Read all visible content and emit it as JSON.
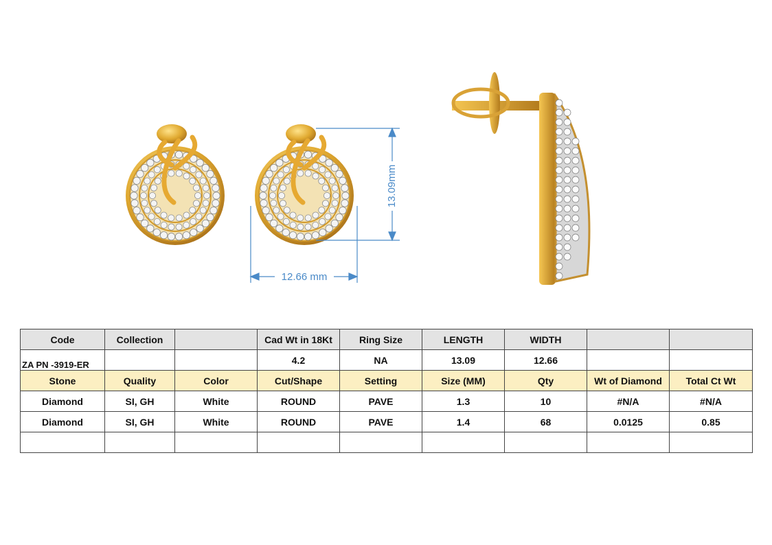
{
  "dimensions": {
    "height": "13.09mm",
    "width": "12.66 mm"
  },
  "table": {
    "rows": [
      [
        "Code",
        "Collection",
        null,
        "Cad Wt in 18Kt",
        "Ring Size",
        "LENGTH",
        "WIDTH",
        null,
        null
      ],
      [
        "ZA PN -3919-ER",
        null,
        null,
        "4.2",
        "NA",
        "13.09",
        "12.66",
        null,
        null
      ],
      [
        "Stone",
        "Quality",
        "Color",
        "Cut/Shape",
        "Setting",
        "Size (MM)",
        "Qty",
        "Wt of Diamond",
        "Total Ct Wt"
      ],
      [
        "Diamond",
        "SI, GH",
        "White",
        "ROUND",
        "PAVE",
        "1.3",
        "10",
        "#N/A",
        "#N/A"
      ],
      [
        "Diamond",
        "SI, GH",
        "White",
        "ROUND",
        "PAVE",
        "1.4",
        "68",
        "0.0125",
        "0.85"
      ],
      [
        null,
        null,
        null,
        null,
        null,
        null,
        null,
        null,
        null
      ]
    ]
  }
}
